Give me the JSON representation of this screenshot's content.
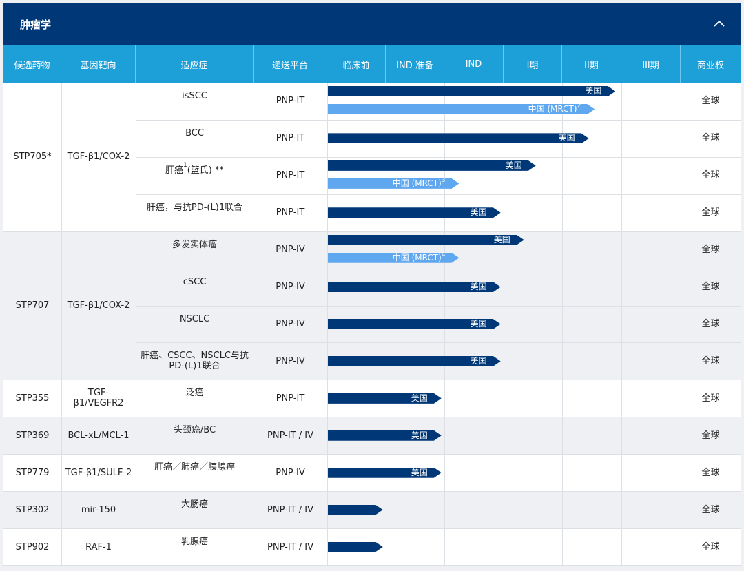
{
  "section": {
    "title": "肿瘤学",
    "collapse_icon": "chevron-up-icon"
  },
  "columns": [
    "候选药物",
    "基因靶向",
    "适应症",
    "递送平台",
    "临床前",
    "IND 准备",
    "IND",
    "I期",
    "II期",
    "III期",
    "商业权"
  ],
  "colors": {
    "header": "#003877",
    "column_header": "#1d9fd8",
    "bar_dark": "#003877",
    "bar_light": "#5fa8f0",
    "alt_row": "#eef0f3"
  },
  "groups": [
    {
      "candidate": "STP705*",
      "target": "TGF-β1/COX-2",
      "shaded": false,
      "rows": [
        {
          "indication": "isSCC",
          "platform": "PNP-IT",
          "rights": "全球",
          "bars": [
            {
              "label": "美国",
              "stage": "II期",
              "progress": 0.9,
              "tone": "dark"
            },
            {
              "label": "中国 (MRCT)",
              "sup": "2",
              "stage": "II期",
              "progress": 0.55,
              "tone": "light"
            }
          ]
        },
        {
          "indication": "BCC",
          "platform": "PNP-IT",
          "rights": "全球",
          "bars": [
            {
              "label": "美国",
              "stage": "II期",
              "progress": 0.45,
              "tone": "dark"
            }
          ]
        },
        {
          "indication": "肝癌",
          "indication_sup": "1",
          "indication_suffix": "(篮氏) **",
          "platform": "PNP-IT",
          "rights": "全球",
          "bars": [
            {
              "label": "美国",
              "stage": "I期",
              "progress": 0.55,
              "tone": "dark"
            },
            {
              "label": "中国 (MRCT)",
              "sup": "3",
              "stage": "IND",
              "progress": 0.25,
              "tone": "light"
            }
          ]
        },
        {
          "indication": "肝癌，与抗PD-(L)1联合",
          "platform": "PNP-IT",
          "rights": "全球",
          "bars": [
            {
              "label": "美国",
              "stage": "IND",
              "progress": 0.95,
              "tone": "dark"
            }
          ]
        }
      ]
    },
    {
      "candidate": "STP707",
      "target": "TGF-β1/COX-2",
      "shaded": true,
      "rows": [
        {
          "indication": "多发实体瘤",
          "platform": "PNP-IV",
          "rights": "全球",
          "bars": [
            {
              "label": "美国",
              "stage": "I期",
              "progress": 0.35,
              "tone": "dark"
            },
            {
              "label": "中国 (MRCT)",
              "sup": "4",
              "stage": "IND",
              "progress": 0.25,
              "tone": "light"
            }
          ]
        },
        {
          "indication": "cSCC",
          "platform": "PNP-IV",
          "rights": "全球",
          "bars": [
            {
              "label": "美国",
              "stage": "IND",
              "progress": 0.95,
              "tone": "dark"
            }
          ]
        },
        {
          "indication": "NSCLC",
          "platform": "PNP-IV",
          "rights": "全球",
          "bars": [
            {
              "label": "美国",
              "stage": "IND",
              "progress": 0.95,
              "tone": "dark"
            }
          ]
        },
        {
          "indication": "肝癌、CSCC、NSCLC与抗PD-(L)1联合",
          "platform": "PNP-IV",
          "rights": "全球",
          "bars": [
            {
              "label": "美国",
              "stage": "IND",
              "progress": 0.95,
              "tone": "dark"
            }
          ]
        }
      ]
    },
    {
      "candidate": "STP355",
      "target": "TGF-β1/VEGFR2",
      "shaded": false,
      "rows": [
        {
          "indication": "泛癌",
          "platform": "PNP-IT",
          "rights": "全球",
          "bars": [
            {
              "label": "美国",
              "stage": "IND 准备",
              "progress": 0.95,
              "tone": "dark"
            }
          ]
        }
      ]
    },
    {
      "candidate": "STP369",
      "target": "BCL-xL/MCL-1",
      "shaded": true,
      "rows": [
        {
          "indication": "头颈癌/BC",
          "platform": "PNP-IT / IV",
          "rights": "全球",
          "bars": [
            {
              "label": "美国",
              "stage": "IND 准备",
              "progress": 0.95,
              "tone": "dark"
            }
          ]
        }
      ]
    },
    {
      "candidate": "STP779",
      "target": "TGF-β1/SULF-2",
      "shaded": false,
      "rows": [
        {
          "indication": "肝癌／肺癌／胰腺癌",
          "platform": "PNP-IV",
          "rights": "全球",
          "bars": [
            {
              "label": "美国",
              "stage": "IND 准备",
              "progress": 0.95,
              "tone": "dark"
            }
          ]
        }
      ]
    },
    {
      "candidate": "STP302",
      "target": "mir-150",
      "shaded": true,
      "rows": [
        {
          "indication": "大肠癌",
          "platform": "PNP-IT / IV",
          "rights": "全球",
          "bars": [
            {
              "label": "",
              "stage": "临床前",
              "progress": 0.95,
              "tone": "dark"
            }
          ]
        }
      ]
    },
    {
      "candidate": "STP902",
      "target": "RAF-1",
      "shaded": false,
      "rows": [
        {
          "indication": "乳腺癌",
          "platform": "PNP-IT / IV",
          "rights": "全球",
          "bars": [
            {
              "label": "",
              "stage": "临床前",
              "progress": 0.95,
              "tone": "dark"
            }
          ]
        }
      ]
    }
  ]
}
